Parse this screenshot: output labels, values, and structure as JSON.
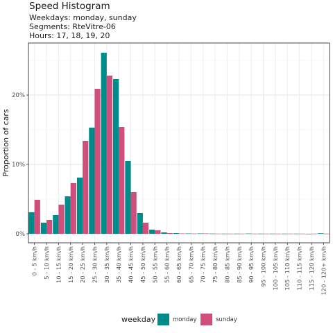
{
  "header": {
    "title": "Speed Histogram",
    "subtitle_lines": [
      "Weekdays: monday, sunday",
      "Segments: RteVitre-06",
      "Hours: 17, 18, 19, 20"
    ]
  },
  "chart_data": {
    "type": "bar",
    "title": "Speed Histogram",
    "xlabel": "",
    "ylabel": "Proportion of cars",
    "ylim": [
      -0.013,
      0.275
    ],
    "yticks": [
      0,
      0.1,
      0.2
    ],
    "ytick_labels": [
      "0%",
      "10%",
      "20%"
    ],
    "grid": true,
    "legend": {
      "title": "weekday",
      "position": "bottom"
    },
    "categories": [
      "0 - 5 km/h",
      "5 - 10 km/h",
      "10 - 15 km/h",
      "15 - 20 km/h",
      "20 - 25 km/h",
      "25 - 30 km/h",
      "30 - 35 km/h",
      "35 - 40 km/h",
      "40 - 45 km/h",
      "45 - 50 km/h",
      "50 - 55 km/h",
      "55 - 60 km/h",
      "60 - 65 km/h",
      "65 - 70 km/h",
      "70 - 75 km/h",
      "75 - 80 km/h",
      "80 - 85 km/h",
      "85 - 90 km/h",
      "90 - 95 km/h",
      "95 - 100 km/h",
      "100 - 105 km/h",
      "105 - 110 km/h",
      "110 - 115 km/h",
      "115 - 120 km/h",
      "120 - 120+ km/h"
    ],
    "series": [
      {
        "name": "monday",
        "color": "#008B8B",
        "values": [
          0.031,
          0.016,
          0.027,
          0.054,
          0.081,
          0.153,
          0.261,
          0.223,
          0.105,
          0.03,
          0.006,
          0.002,
          0.001,
          0.0005,
          0.0005,
          0.0003,
          0.0002,
          0.0002,
          0.0004,
          0.0002,
          0.0002,
          0.0002,
          0.0002,
          0.0,
          0.0008
        ]
      },
      {
        "name": "sunday",
        "color": "#CF4E7B",
        "values": [
          0.049,
          0.02,
          0.042,
          0.073,
          0.134,
          0.209,
          0.228,
          0.154,
          0.06,
          0.016,
          0.005,
          0.001,
          0.0005,
          0.0003,
          0.0005,
          0.0002,
          0.0002,
          0.0002,
          0.0002,
          0.0002,
          0.0002,
          0.0002,
          0.0002,
          0.0002,
          0.0002
        ]
      }
    ]
  }
}
